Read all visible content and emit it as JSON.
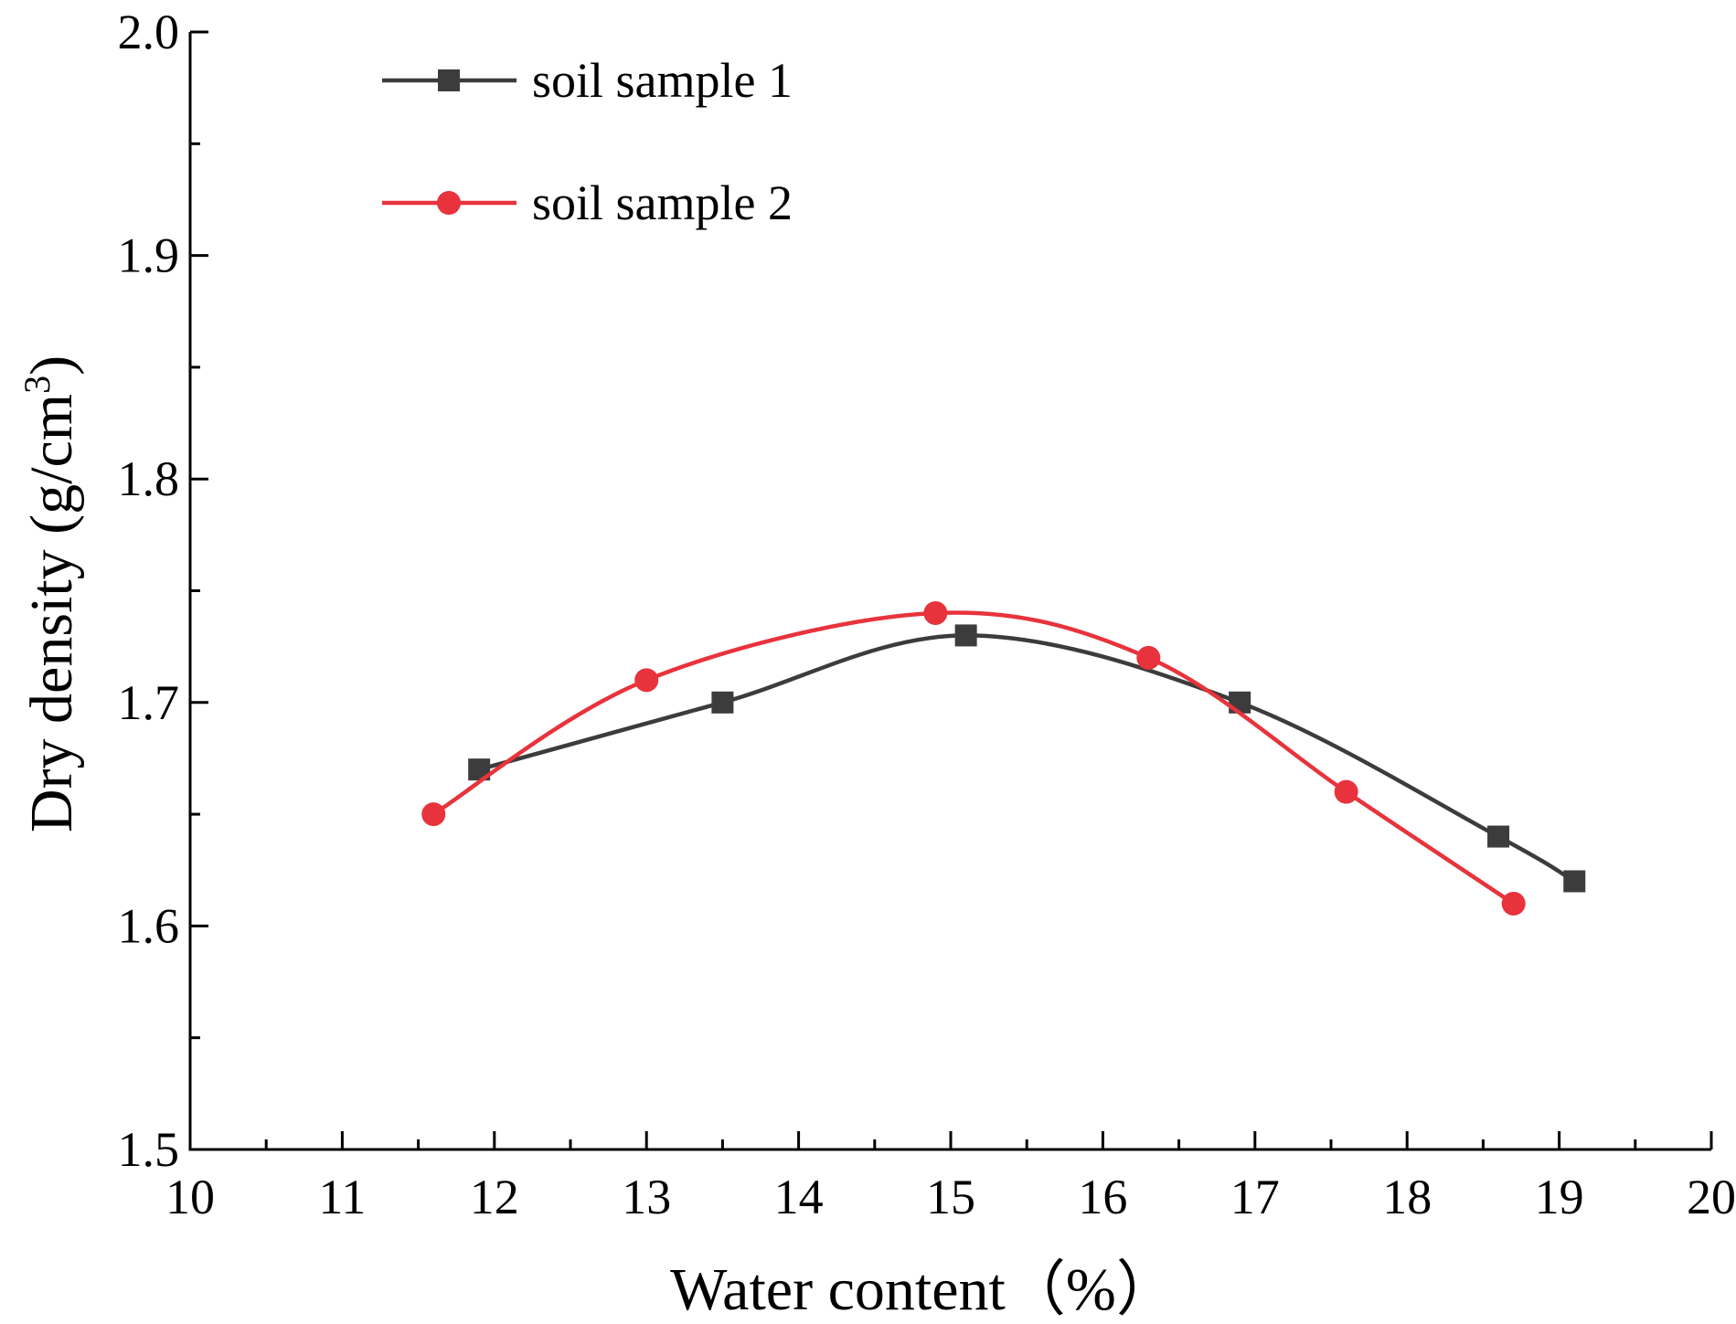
{
  "chart_data": {
    "type": "line",
    "xlabel": "Water content（%）",
    "ylabel": "Dry density (g/cm",
    "ylabel_superscript": "3",
    "ylabel_close": ")",
    "xlim": [
      10,
      20
    ],
    "ylim": [
      1.5,
      2.0
    ],
    "xticks": [
      10,
      11,
      12,
      13,
      14,
      15,
      16,
      17,
      18,
      19,
      20
    ],
    "xtick_labels": [
      "10",
      "11",
      "12",
      "13",
      "14",
      "15",
      "16",
      "17",
      "18",
      "19",
      "20"
    ],
    "yticks": [
      1.5,
      1.6,
      1.7,
      1.8,
      1.9,
      2.0
    ],
    "ytick_labels": [
      "1.5",
      "1.6",
      "1.7",
      "1.8",
      "1.9",
      "2.0"
    ],
    "grid": false,
    "legend_position": "top-left",
    "series": [
      {
        "name": "soil sample 1",
        "color": "#3c3c3c",
        "marker": "square",
        "x": [
          11.9,
          13.5,
          15.1,
          16.9,
          18.6,
          19.1
        ],
        "y": [
          1.67,
          1.7,
          1.73,
          1.7,
          1.64,
          1.62
        ]
      },
      {
        "name": "soil sample 2",
        "color": "#e8333c",
        "marker": "circle",
        "x": [
          11.6,
          13.0,
          14.9,
          16.3,
          17.6,
          18.7
        ],
        "y": [
          1.65,
          1.71,
          1.74,
          1.72,
          1.66,
          1.61
        ]
      }
    ]
  }
}
